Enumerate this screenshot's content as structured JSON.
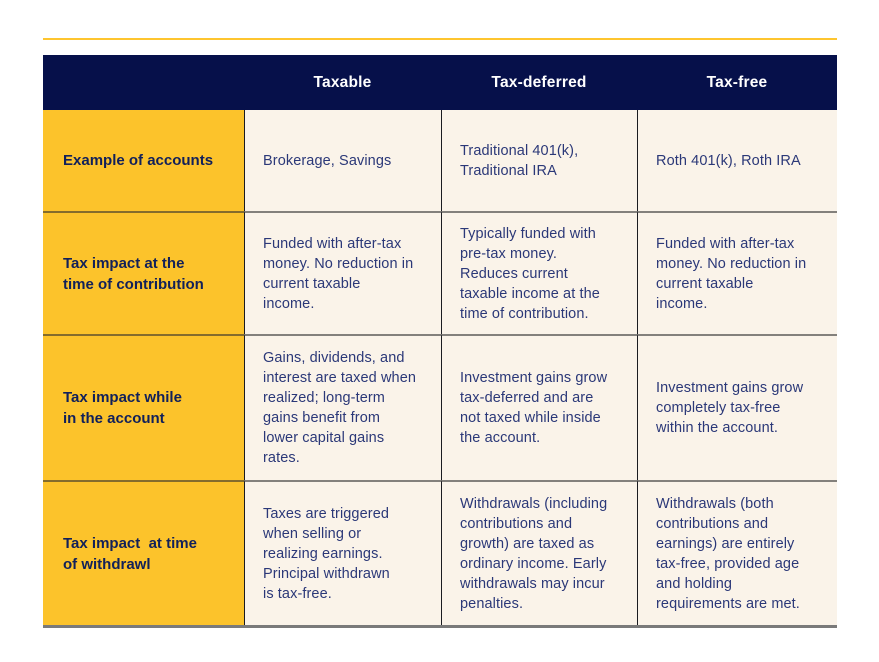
{
  "colors": {
    "accent_gold_line": "#FEC52F",
    "header_navy": "#06104A",
    "label_yellow": "#FCC32B",
    "cell_cream": "#FAF3E9",
    "body_text_navy": "#2B3878",
    "label_text_navy": "#11205A",
    "header_text": "#FFFFFF"
  },
  "table": {
    "columns": [
      "",
      "Taxable",
      "Tax-deferred",
      "Tax-free"
    ],
    "rows": [
      {
        "label": "Example of accounts",
        "taxable": "Brokerage, Savings",
        "tax_deferred": "Traditional 401(k),\nTraditional IRA",
        "tax_free": "Roth 401(k), Roth IRA"
      },
      {
        "label": "Tax impact at the\ntime of contribution",
        "taxable": "Funded with after-tax\nmoney. No reduction in\ncurrent taxable\nincome.",
        "tax_deferred": "Typically funded with\npre-tax money.\nReduces current\ntaxable income at the\ntime of contribution.",
        "tax_free": "Funded with after-tax\nmoney. No reduction in\ncurrent taxable\nincome."
      },
      {
        "label": "Tax impact while\nin the account",
        "taxable": "Gains, dividends, and\ninterest are taxed when\nrealized; long-term\ngains benefit from\nlower capital gains\nrates.",
        "tax_deferred": "Investment gains grow\ntax-deferred and are\nnot taxed while inside\nthe account.",
        "tax_free": "Investment gains grow\ncompletely tax-free\nwithin the account."
      },
      {
        "label": "Tax impact  at time\nof withdrawl",
        "taxable": "Taxes are triggered\nwhen selling or\nrealizing earnings.\nPrincipal withdrawn\nis tax-free.",
        "tax_deferred": "Withdrawals (including\ncontributions and\ngrowth) are taxed as\nordinary income. Early\nwithdrawals may incur\npenalties.",
        "tax_free": "Withdrawals (both\ncontributions and\nearnings) are entirely\ntax-free, provided age\nand holding\nrequirements are met."
      }
    ]
  },
  "chart_data": {
    "type": "table",
    "columns": [
      "",
      "Taxable",
      "Tax-deferred",
      "Tax-free"
    ],
    "rows": [
      [
        "Example of accounts",
        "Brokerage, Savings",
        "Traditional 401(k), Traditional IRA",
        "Roth 401(k), Roth IRA"
      ],
      [
        "Tax impact at the time of contribution",
        "Funded with after-tax money. No reduction in current taxable income.",
        "Typically funded with pre-tax money. Reduces current taxable income at the time of contribution.",
        "Funded with after-tax money. No reduction in current taxable income."
      ],
      [
        "Tax impact while in the account",
        "Gains, dividends, and interest are taxed when realized; long-term gains benefit from lower capital gains rates.",
        "Investment gains grow tax-deferred and are not taxed while inside the account.",
        "Investment gains grow completely tax-free within the account."
      ],
      [
        "Tax impact  at time of withdrawl",
        "Taxes are triggered when selling or realizing earnings. Principal withdrawn is tax-free.",
        "Withdrawals (including contributions and growth) are taxed as ordinary income. Early withdrawals may incur penalties.",
        "Withdrawals (both contributions and earnings) are entirely tax-free, provided age and holding requirements are met."
      ]
    ]
  }
}
